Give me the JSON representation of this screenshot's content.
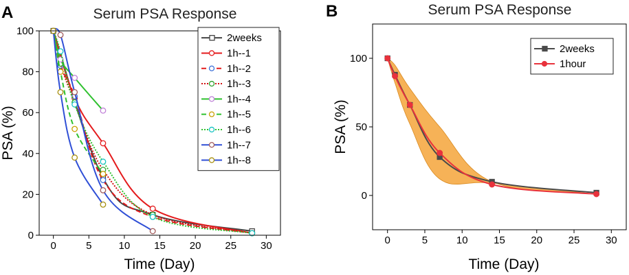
{
  "chart_data": [
    {
      "type": "line",
      "panel_label": "A",
      "title": "Serum PSA Response",
      "xlabel": "Time (Day)",
      "ylabel": "PSA (%)",
      "xlim": [
        -2,
        32
      ],
      "ylim": [
        0,
        100
      ],
      "xticks": [
        "0",
        "5",
        "10",
        "15",
        "20",
        "25",
        "30"
      ],
      "yticks": [
        "0",
        "20",
        "40",
        "60",
        "80",
        "100"
      ],
      "legend_position": "top-right",
      "series": [
        {
          "name": "2weeks",
          "color": "#444444",
          "dash": "solid",
          "marker": "square",
          "x": [
            0,
            7,
            14,
            28
          ],
          "y": [
            100,
            28,
            10,
            2
          ]
        },
        {
          "name": "1h--1",
          "color": "#e41a1c",
          "dash": "solid",
          "marker": "circle",
          "x": [
            0,
            3,
            7,
            14,
            28
          ],
          "y": [
            100,
            67,
            45,
            13,
            1
          ]
        },
        {
          "name": "1h--2",
          "color": "#e41a1c",
          "dash": "dashed",
          "marker": "circle",
          "marker_color": "#3a6fd8",
          "x": [
            0,
            1,
            3,
            7,
            14,
            28
          ],
          "y": [
            100,
            83,
            68,
            27,
            9,
            1
          ]
        },
        {
          "name": "1h--3",
          "color": "#d21010",
          "dash": "dotted",
          "marker": "circle",
          "marker_color": "#2ca02c",
          "x": [
            0,
            1,
            3,
            7,
            14,
            28
          ],
          "y": [
            100,
            84,
            65,
            32,
            10,
            1
          ]
        },
        {
          "name": "1h--4",
          "color": "#2fc12f",
          "dash": "solid",
          "marker": "circle",
          "marker_color": "#c080d8",
          "x": [
            0,
            1,
            3,
            7
          ],
          "y": [
            100,
            86,
            77,
            61
          ]
        },
        {
          "name": "1h--5",
          "color": "#2fc12f",
          "dash": "dashed",
          "marker": "circle",
          "marker_color": "#c8a000",
          "x": [
            0,
            1,
            3,
            7
          ],
          "y": [
            100,
            80,
            52,
            30
          ]
        },
        {
          "name": "1h--6",
          "color": "#2fc12f",
          "dash": "dotted",
          "marker": "circle",
          "marker_color": "#17c3c3",
          "x": [
            0,
            1,
            3,
            7,
            14,
            28
          ],
          "y": [
            100,
            90,
            64,
            36,
            9,
            1
          ]
        },
        {
          "name": "1h--7",
          "color": "#2f4fd6",
          "dash": "solid",
          "marker": "circle",
          "marker_color": "#a05a5a",
          "x": [
            0,
            1,
            3,
            7,
            14
          ],
          "y": [
            100,
            98,
            70,
            22,
            2
          ]
        },
        {
          "name": "1h--8",
          "color": "#2f4fd6",
          "dash": "solid",
          "marker": "circle",
          "marker_color": "#a89010",
          "x": [
            0,
            1,
            3,
            7
          ],
          "y": [
            100,
            70,
            38,
            15
          ]
        }
      ]
    },
    {
      "type": "line",
      "panel_label": "B",
      "title": "Serum PSA Response",
      "xlabel": "Time (Day)",
      "ylabel": "PSA (%)",
      "xlim": [
        -2,
        32
      ],
      "ylim": [
        -25,
        125
      ],
      "xticks": [
        "0",
        "5",
        "10",
        "15",
        "20",
        "25",
        "30"
      ],
      "yticks": [
        "0",
        "50",
        "100"
      ],
      "legend_position": "top-right",
      "band": {
        "color": "#f5a53a",
        "x": [
          0,
          1,
          3,
          7,
          14,
          28
        ],
        "upper": [
          100,
          95,
          78,
          50,
          10,
          1
        ],
        "lower": [
          100,
          82,
          52,
          12,
          9,
          1
        ]
      },
      "series": [
        {
          "name": "2weeks",
          "color": "#4a4a4a",
          "marker": "square",
          "x": [
            0,
            1,
            3,
            7,
            14,
            28
          ],
          "y": [
            100,
            88,
            66,
            28,
            10,
            2
          ]
        },
        {
          "name": "1hour",
          "color": "#e8323c",
          "marker": "circle",
          "x": [
            0,
            1,
            3,
            7,
            14,
            28
          ],
          "y": [
            100,
            87,
            66,
            31,
            8,
            1
          ]
        }
      ]
    }
  ]
}
